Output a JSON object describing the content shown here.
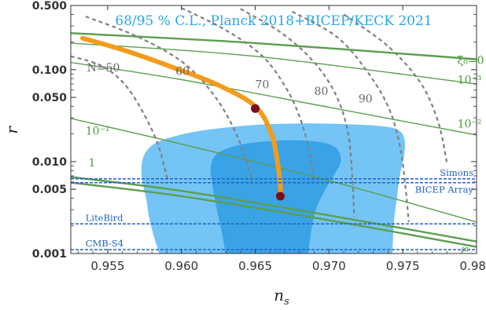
{
  "chart_data": {
    "type": "line",
    "title": "68/95 % C.L., Planck 2018+BICEP/KECK 2021",
    "xlabel": "n_s",
    "xlabel_base": "n",
    "xlabel_sub": "s",
    "ylabel": "r",
    "xlim": [
      0.9525,
      0.98
    ],
    "ylim": [
      0.001,
      0.5
    ],
    "yscale": "log",
    "xticks": [
      {
        "value": 0.955,
        "label": "0.955"
      },
      {
        "value": 0.96,
        "label": "0.960"
      },
      {
        "value": 0.965,
        "label": "0.965"
      },
      {
        "value": 0.97,
        "label": "0.970"
      },
      {
        "value": 0.975,
        "label": "0.975"
      },
      {
        "value": 0.98,
        "label": "0.980"
      }
    ],
    "yticks": [
      {
        "value": 0.5,
        "label": "0.500"
      },
      {
        "value": 0.1,
        "label": "0.100"
      },
      {
        "value": 0.05,
        "label": "0.050"
      },
      {
        "value": 0.01,
        "label": "0.010"
      },
      {
        "value": 0.005,
        "label": "0.005"
      },
      {
        "value": 0.001,
        "label": "0.001"
      }
    ],
    "colors": {
      "ci95": "#74c4f6",
      "ci68": "#3aa3e6",
      "title": "#29a7e8",
      "xi_lines": "#5c9e4f",
      "xi_labels": "#4a9a3a",
      "efolds": "#808080",
      "model": "#f39c1b",
      "points": "#7a0d18",
      "experiments": "#1f62c8"
    },
    "confidence_regions": [
      {
        "name": "95% C.L.",
        "boundary": [
          [
            0.9585,
            0.001
          ],
          [
            0.9581,
            0.0016
          ],
          [
            0.9578,
            0.0025
          ],
          [
            0.9576,
            0.004
          ],
          [
            0.9573,
            0.007
          ],
          [
            0.9574,
            0.011
          ],
          [
            0.958,
            0.015
          ],
          [
            0.9591,
            0.018
          ],
          [
            0.9608,
            0.021
          ],
          [
            0.963,
            0.0235
          ],
          [
            0.9658,
            0.0255
          ],
          [
            0.9686,
            0.026
          ],
          [
            0.9712,
            0.0255
          ],
          [
            0.9733,
            0.0245
          ],
          [
            0.9746,
            0.0225
          ],
          [
            0.9751,
            0.018
          ],
          [
            0.9751,
            0.012
          ],
          [
            0.9748,
            0.007
          ],
          [
            0.9746,
            0.004
          ],
          [
            0.9744,
            0.0022
          ],
          [
            0.9743,
            0.001
          ]
        ]
      },
      {
        "name": "68% C.L.",
        "boundary": [
          [
            0.963,
            0.001
          ],
          [
            0.9627,
            0.0018
          ],
          [
            0.9624,
            0.003
          ],
          [
            0.9621,
            0.0055
          ],
          [
            0.962,
            0.009
          ],
          [
            0.9625,
            0.0125
          ],
          [
            0.9642,
            0.0155
          ],
          [
            0.9668,
            0.017
          ],
          [
            0.9692,
            0.0165
          ],
          [
            0.9705,
            0.014
          ],
          [
            0.9708,
            0.01
          ],
          [
            0.9703,
            0.007
          ],
          [
            0.9697,
            0.0048
          ],
          [
            0.9691,
            0.003
          ],
          [
            0.9688,
            0.0018
          ],
          [
            0.9686,
            0.001
          ]
        ]
      }
    ],
    "xi_curves": [
      {
        "label": "ξ₀=0",
        "label_x": 0.9787,
        "label_y": 0.115,
        "points": [
          [
            0.9525,
            0.25
          ],
          [
            0.965,
            0.195
          ],
          [
            0.98,
            0.13
          ]
        ]
      },
      {
        "label": "10⁻³",
        "label_x": 0.9787,
        "label_y": 0.071,
        "points": [
          [
            0.9525,
            0.195
          ],
          [
            0.965,
            0.14
          ],
          [
            0.98,
            0.07
          ]
        ]
      },
      {
        "label": "10⁻²",
        "label_x": 0.9787,
        "label_y": 0.0236,
        "points": [
          [
            0.9525,
            0.12
          ],
          [
            0.96,
            0.078
          ],
          [
            0.97,
            0.039
          ],
          [
            0.98,
            0.0195
          ]
        ]
      },
      {
        "label": "10⁻¹",
        "label_x": 0.9535,
        "label_y": 0.0197,
        "points": [
          [
            0.9525,
            0.0295
          ],
          [
            0.96,
            0.0155
          ],
          [
            0.97,
            0.0062
          ],
          [
            0.98,
            0.0022
          ]
        ]
      },
      {
        "label": "1",
        "label_x": 0.9537,
        "label_y": 0.0089,
        "points": [
          [
            0.9525,
            0.0068
          ],
          [
            0.96,
            0.0048
          ],
          [
            0.97,
            0.0026
          ],
          [
            0.98,
            0.00135
          ]
        ]
      },
      {
        "label": "∞",
        "label_x": 0.9789,
        "label_y": 0.00102,
        "points": [
          [
            0.9525,
            0.0059
          ],
          [
            0.96,
            0.0042
          ],
          [
            0.97,
            0.0023
          ],
          [
            0.98,
            0.00118
          ]
        ]
      }
    ],
    "efold_curves": [
      {
        "label": "N=50",
        "label_x": 0.9536,
        "label_y": 0.096,
        "points": [
          [
            0.9525,
            0.14
          ],
          [
            0.9546,
            0.11
          ],
          [
            0.9562,
            0.068
          ],
          [
            0.9575,
            0.032
          ],
          [
            0.9584,
            0.0155
          ],
          [
            0.9589,
            0.008
          ],
          [
            0.9591,
            0.006
          ]
        ]
      },
      {
        "label": "60",
        "label_x": 0.9596,
        "label_y": 0.088,
        "points": [
          [
            0.9535,
            0.38
          ],
          [
            0.957,
            0.23
          ],
          [
            0.9601,
            0.12
          ],
          [
            0.9622,
            0.053
          ],
          [
            0.9636,
            0.022
          ],
          [
            0.9644,
            0.01
          ],
          [
            0.9648,
            0.006
          ]
        ]
      },
      {
        "label": "70",
        "label_x": 0.965,
        "label_y": 0.063,
        "points": [
          [
            0.96,
            0.47
          ],
          [
            0.963,
            0.27
          ],
          [
            0.9655,
            0.14
          ],
          [
            0.9671,
            0.063
          ],
          [
            0.9681,
            0.028
          ],
          [
            0.9687,
            0.012
          ],
          [
            0.969,
            0.006
          ]
        ]
      },
      {
        "label": "80",
        "label_x": 0.969,
        "label_y": 0.053,
        "points": [
          [
            0.964,
            0.46
          ],
          [
            0.9668,
            0.25
          ],
          [
            0.969,
            0.12
          ],
          [
            0.9705,
            0.052
          ],
          [
            0.9713,
            0.02
          ],
          [
            0.9716,
            0.006
          ],
          [
            0.9717,
            0.0025
          ]
        ]
      },
      {
        "label": "90",
        "label_x": 0.972,
        "label_y": 0.044,
        "points": [
          [
            0.9675,
            0.43
          ],
          [
            0.9705,
            0.23
          ],
          [
            0.9725,
            0.1
          ],
          [
            0.974,
            0.04
          ],
          [
            0.9748,
            0.015
          ],
          [
            0.9752,
            0.005
          ],
          [
            0.9754,
            0.0022
          ]
        ]
      },
      {
        "label": "",
        "label_x": null,
        "label_y": null,
        "points": [
          [
            0.971,
            0.4
          ],
          [
            0.974,
            0.18
          ],
          [
            0.9762,
            0.072
          ],
          [
            0.9774,
            0.027
          ],
          [
            0.978,
            0.0095
          ]
        ]
      }
    ],
    "model_curve": {
      "points": [
        [
          0.9533,
          0.22
        ],
        [
          0.956,
          0.165
        ],
        [
          0.9595,
          0.105
        ],
        [
          0.9625,
          0.068
        ],
        [
          0.965,
          0.04
        ],
        [
          0.9661,
          0.02
        ],
        [
          0.9665,
          0.01
        ],
        [
          0.9667,
          0.0055
        ],
        [
          0.9667,
          0.0042
        ]
      ],
      "markers": [
        [
          0.965,
          0.0378
        ],
        [
          0.9667,
          0.0042
        ]
      ]
    },
    "experiments": [
      {
        "name": "Simons",
        "r": 0.0065,
        "label_x": 0.9765,
        "label_above": true
      },
      {
        "name": "BICEP Array",
        "r": 0.0059,
        "label_x": 0.9755,
        "label_above": false
      },
      {
        "name": "LiteBird",
        "r": 0.0021,
        "label_x": 0.9535,
        "label_above": true
      },
      {
        "name": "CMB-S4",
        "r": 0.0011,
        "label_x": 0.9535,
        "label_above": true
      }
    ]
  }
}
